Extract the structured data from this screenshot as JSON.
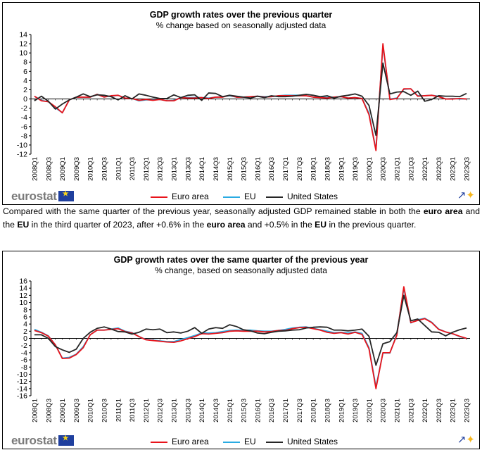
{
  "chart1": {
    "title": "GDP growth rates over the previous quarter",
    "subtitle": "% change based on seasonally adjusted data"
  },
  "chart2": {
    "title": "GDP growth rates over the same quarter of the previous year",
    "subtitle": "% change, based on seasonally adjusted data"
  },
  "logo_text": "eurostat",
  "legend": {
    "euro_area": "Euro area",
    "eu": "EU",
    "us": "United States"
  },
  "colors": {
    "euro_area": "#e8141b",
    "eu": "#29abe2",
    "us": "#262626"
  },
  "paragraph": {
    "p1": "Compared with the same quarter of the previous year, seasonally adjusted GDP remained stable in both the ",
    "b1": "euro area",
    "p2": " and the ",
    "b2": "EU",
    "p3": " in the third quarter of 2023, after +0.6% in the ",
    "b3": "euro area",
    "p4": " and +0.5% in the ",
    "b4": "EU",
    "p5": " in the previous quarter."
  },
  "chart_data": [
    {
      "type": "line",
      "title": "GDP growth rates over the previous quarter",
      "subtitle": "% change based on seasonally adjusted data",
      "x_start": "2008Q1",
      "x_end": "2023Q3",
      "categories": [
        "2008Q1",
        "2008Q2",
        "2008Q3",
        "2008Q4",
        "2009Q1",
        "2009Q2",
        "2009Q3",
        "2009Q4",
        "2010Q1",
        "2010Q2",
        "2010Q3",
        "2010Q4",
        "2011Q1",
        "2011Q2",
        "2011Q3",
        "2011Q4",
        "2012Q1",
        "2012Q2",
        "2012Q3",
        "2012Q4",
        "2013Q1",
        "2013Q2",
        "2013Q3",
        "2013Q4",
        "2014Q1",
        "2014Q2",
        "2014Q3",
        "2014Q4",
        "2015Q1",
        "2015Q2",
        "2015Q3",
        "2015Q4",
        "2016Q1",
        "2016Q2",
        "2016Q3",
        "2016Q4",
        "2017Q1",
        "2017Q2",
        "2017Q3",
        "2017Q4",
        "2018Q1",
        "2018Q2",
        "2018Q3",
        "2018Q4",
        "2019Q1",
        "2019Q2",
        "2019Q3",
        "2019Q4",
        "2020Q1",
        "2020Q2",
        "2020Q3",
        "2020Q4",
        "2021Q1",
        "2021Q2",
        "2021Q3",
        "2021Q4",
        "2022Q1",
        "2022Q2",
        "2022Q3",
        "2022Q4",
        "2023Q1",
        "2023Q2",
        "2023Q3"
      ],
      "ylim": [
        -12,
        14
      ],
      "yticks": [
        14,
        12,
        10,
        8,
        6,
        4,
        2,
        0,
        -2,
        -4,
        -6,
        -8,
        -10,
        -12
      ],
      "series": [
        {
          "name": "Euro area",
          "color": "#e8141b",
          "values": [
            0.6,
            -0.4,
            -0.6,
            -1.7,
            -3.0,
            -0.2,
            0.4,
            0.4,
            0.4,
            1.0,
            0.4,
            0.7,
            0.8,
            0.2,
            0.1,
            -0.3,
            -0.1,
            -0.3,
            -0.1,
            -0.4,
            -0.4,
            0.3,
            0.2,
            0.2,
            0.3,
            0.1,
            0.4,
            0.4,
            0.8,
            0.4,
            0.4,
            0.5,
            0.6,
            0.4,
            0.5,
            0.7,
            0.7,
            0.7,
            0.7,
            0.7,
            0.4,
            0.3,
            0.2,
            0.4,
            0.5,
            0.2,
            0.3,
            0.1,
            -3.4,
            -11.2,
            12.0,
            -0.1,
            0.1,
            2.2,
            2.2,
            0.6,
            0.7,
            0.8,
            0.5,
            0.0,
            0.0,
            0.1,
            0.0
          ]
        },
        {
          "name": "EU",
          "color": "#29abe2",
          "values": [
            0.6,
            -0.3,
            -0.6,
            -1.9,
            -3.0,
            -0.2,
            0.4,
            0.4,
            0.4,
            1.0,
            0.5,
            0.6,
            0.8,
            0.2,
            0.1,
            -0.4,
            -0.2,
            -0.2,
            -0.1,
            -0.4,
            -0.3,
            0.3,
            0.3,
            0.3,
            0.3,
            0.2,
            0.4,
            0.5,
            0.7,
            0.4,
            0.4,
            0.5,
            0.6,
            0.5,
            0.5,
            0.7,
            0.8,
            0.8,
            0.8,
            0.7,
            0.4,
            0.4,
            0.3,
            0.4,
            0.5,
            0.2,
            0.3,
            0.1,
            -3.1,
            -11.0,
            11.6,
            0.0,
            0.2,
            2.1,
            2.2,
            0.7,
            0.7,
            0.8,
            0.6,
            0.0,
            0.1,
            0.0,
            0.0
          ]
        },
        {
          "name": "United States",
          "color": "#262626",
          "values": [
            -0.4,
            0.6,
            -0.5,
            -2.2,
            -1.1,
            -0.2,
            0.4,
            1.1,
            0.5,
            0.9,
            0.8,
            0.5,
            -0.2,
            0.7,
            0.0,
            1.1,
            0.8,
            0.4,
            0.1,
            0.1,
            0.9,
            0.3,
            0.8,
            0.9,
            -0.3,
            1.3,
            1.2,
            0.5,
            0.8,
            0.6,
            0.4,
            0.2,
            0.6,
            0.3,
            0.7,
            0.5,
            0.5,
            0.6,
            0.8,
            1.0,
            0.8,
            0.5,
            0.7,
            0.2,
            0.6,
            0.8,
            1.1,
            0.6,
            -1.4,
            -7.9,
            7.8,
            1.1,
            1.5,
            1.6,
            0.8,
            1.7,
            -0.5,
            -0.1,
            0.7,
            0.6,
            0.6,
            0.5,
            1.2
          ]
        }
      ]
    },
    {
      "type": "line",
      "title": "GDP growth rates over the same quarter of the previous year",
      "subtitle": "% change, based on seasonally adjusted data",
      "x_start": "2008Q1",
      "x_end": "2023Q3",
      "ylim": [
        -16,
        16
      ],
      "yticks": [
        16,
        14,
        12,
        10,
        8,
        6,
        4,
        2,
        0,
        -2,
        -4,
        -6,
        -8,
        -10,
        -12,
        -14,
        -16
      ],
      "series": [
        {
          "name": "Euro area",
          "color": "#e8141b",
          "values": [
            2.2,
            1.6,
            0.6,
            -1.8,
            -5.6,
            -5.5,
            -4.5,
            -2.6,
            1.0,
            2.3,
            2.3,
            2.5,
            2.7,
            1.9,
            1.5,
            0.5,
            -0.4,
            -0.6,
            -0.8,
            -1.0,
            -1.1,
            -0.7,
            -0.1,
            0.5,
            1.3,
            1.2,
            1.4,
            1.6,
            2.0,
            2.1,
            2.0,
            2.0,
            2.0,
            1.8,
            1.9,
            2.2,
            2.2,
            2.7,
            3.0,
            3.1,
            2.7,
            2.3,
            1.7,
            1.4,
            1.6,
            1.2,
            1.7,
            1.1,
            -2.9,
            -14.0,
            -4.0,
            -4.0,
            0.9,
            14.4,
            4.4,
            5.0,
            5.5,
            4.4,
            2.5,
            1.8,
            1.3,
            0.6,
            0.0
          ]
        },
        {
          "name": "EU",
          "color": "#29abe2",
          "values": [
            2.5,
            1.7,
            0.7,
            -1.8,
            -5.5,
            -5.3,
            -4.4,
            -2.3,
            1.0,
            2.3,
            2.3,
            2.6,
            2.9,
            2.0,
            1.6,
            0.5,
            -0.3,
            -0.5,
            -0.7,
            -0.9,
            -0.9,
            -0.3,
            0.2,
            0.8,
            1.5,
            1.5,
            1.6,
            1.9,
            2.2,
            2.3,
            2.2,
            2.3,
            2.1,
            2.0,
            2.0,
            2.2,
            2.5,
            2.9,
            3.1,
            3.2,
            2.8,
            2.4,
            2.0,
            1.6,
            1.7,
            1.5,
            1.8,
            1.4,
            -2.6,
            -13.5,
            -4.1,
            -4.1,
            1.2,
            14.0,
            4.3,
            5.2,
            5.6,
            4.5,
            2.6,
            1.8,
            1.3,
            0.5,
            0.0
          ]
        },
        {
          "name": "United States",
          "color": "#262626",
          "values": [
            1.0,
            1.0,
            0.0,
            -2.3,
            -3.2,
            -3.9,
            -3.0,
            0.0,
            1.7,
            2.8,
            3.2,
            2.6,
            1.9,
            1.8,
            1.2,
            1.7,
            2.6,
            2.4,
            2.6,
            1.6,
            1.8,
            1.5,
            2.0,
            3.0,
            1.4,
            2.6,
            3.0,
            2.8,
            3.8,
            3.3,
            2.4,
            2.1,
            1.5,
            1.3,
            1.7,
            2.0,
            2.1,
            2.3,
            2.4,
            2.9,
            3.1,
            3.2,
            3.1,
            2.3,
            2.3,
            2.1,
            2.3,
            2.6,
            0.6,
            -7.5,
            -1.5,
            -0.9,
            1.6,
            12.0,
            4.9,
            5.4,
            3.6,
            1.8,
            1.7,
            0.7,
            1.7,
            2.4,
            2.9
          ]
        }
      ]
    }
  ]
}
